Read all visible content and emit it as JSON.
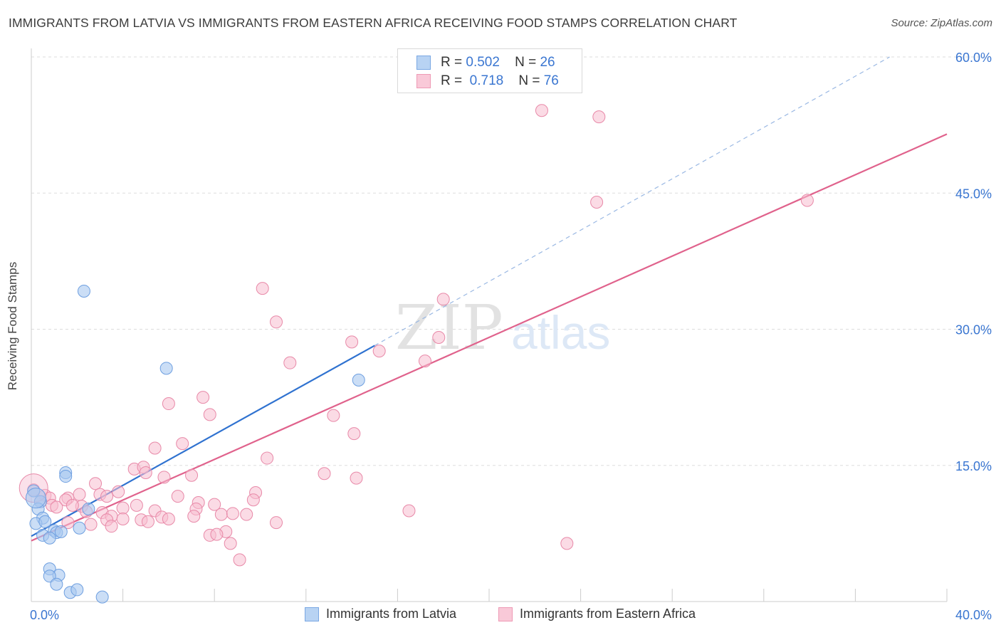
{
  "title": "IMMIGRANTS FROM LATVIA VS IMMIGRANTS FROM EASTERN AFRICA RECEIVING FOOD STAMPS CORRELATION CHART",
  "source": "Source: ZipAtlas.com",
  "watermark": {
    "zip": "ZIP",
    "atlas": "atlas"
  },
  "legend": {
    "latvia": {
      "r_label": "R =",
      "r_value": "0.502",
      "n_label": "N =",
      "n_value": "26"
    },
    "eafrica": {
      "r_label": "R =",
      "r_value": "0.718",
      "n_label": "N =",
      "n_value": "76"
    }
  },
  "bottom_legend": {
    "latvia": "Immigrants from Latvia",
    "eafrica": "Immigrants from Eastern Africa"
  },
  "chart_data": {
    "type": "scatter",
    "title": "IMMIGRANTS FROM LATVIA VS IMMIGRANTS FROM EASTERN AFRICA RECEIVING FOOD STAMPS CORRELATION CHART",
    "xlabel": "",
    "ylabel": "Receiving Food Stamps",
    "xlim": [
      0,
      40
    ],
    "ylim": [
      0,
      60
    ],
    "x_tick_labels": [
      {
        "value": 0,
        "label": "0.0%"
      },
      {
        "value": 40,
        "label": "40.0%"
      }
    ],
    "y_tick_labels": [
      {
        "value": 15,
        "label": "15.0%"
      },
      {
        "value": 30,
        "label": "30.0%"
      },
      {
        "value": 45,
        "label": "45.0%"
      },
      {
        "value": 60,
        "label": "60.0%"
      }
    ],
    "grid": true,
    "colors": {
      "latvia_fill": "#a9c8f0",
      "latvia_stroke": "#6e9fe0",
      "latvia_line": "#2f72d0",
      "eafrica_fill": "#f7bdd0",
      "eafrica_stroke": "#e889a8",
      "eafrica_line": "#e0628c",
      "axis_text": "#3a76d1",
      "grid": "#dddddd"
    },
    "series": [
      {
        "name": "Immigrants from Latvia",
        "r": 0.502,
        "n": 26,
        "trend": {
          "x0": 0.0,
          "y0": 7.2,
          "x1": 15.0,
          "y1": 28.2,
          "dash_to_x": 37.5,
          "dash_to_y": 60.0
        },
        "points": [
          [
            2.3,
            34.2
          ],
          [
            5.9,
            25.7
          ],
          [
            14.3,
            24.4
          ],
          [
            1.5,
            14.2
          ],
          [
            1.5,
            13.8
          ],
          [
            0.1,
            12.2
          ],
          [
            0.4,
            11.0
          ],
          [
            0.3,
            10.2
          ],
          [
            0.5,
            9.2
          ],
          [
            0.2,
            8.6
          ],
          [
            0.6,
            8.8
          ],
          [
            1.0,
            7.8
          ],
          [
            1.1,
            7.6
          ],
          [
            1.3,
            7.7
          ],
          [
            0.5,
            7.3
          ],
          [
            0.8,
            7.0
          ],
          [
            2.1,
            8.1
          ],
          [
            2.5,
            10.2
          ],
          [
            0.8,
            3.6
          ],
          [
            1.2,
            2.9
          ],
          [
            0.8,
            2.8
          ],
          [
            1.1,
            1.9
          ],
          [
            1.7,
            1.0
          ],
          [
            2.0,
            1.3
          ],
          [
            3.1,
            0.5
          ],
          [
            0.2,
            11.4
          ]
        ]
      },
      {
        "name": "Immigrants from Eastern Africa",
        "r": 0.718,
        "n": 76,
        "trend": {
          "x0": 0.0,
          "y0": 6.7,
          "x1": 40.0,
          "y1": 51.5
        },
        "points": [
          [
            22.3,
            54.1
          ],
          [
            24.8,
            53.4
          ],
          [
            24.7,
            44.0
          ],
          [
            33.9,
            44.2
          ],
          [
            10.1,
            34.5
          ],
          [
            18.0,
            33.3
          ],
          [
            10.7,
            30.8
          ],
          [
            14.0,
            28.6
          ],
          [
            17.8,
            29.1
          ],
          [
            15.2,
            27.6
          ],
          [
            11.3,
            26.3
          ],
          [
            17.2,
            26.5
          ],
          [
            7.5,
            22.5
          ],
          [
            6.0,
            21.8
          ],
          [
            7.8,
            20.6
          ],
          [
            13.2,
            20.5
          ],
          [
            14.1,
            18.5
          ],
          [
            6.6,
            17.4
          ],
          [
            5.4,
            16.9
          ],
          [
            10.3,
            15.8
          ],
          [
            4.5,
            14.6
          ],
          [
            4.9,
            14.8
          ],
          [
            5.0,
            14.2
          ],
          [
            12.8,
            14.1
          ],
          [
            14.2,
            13.6
          ],
          [
            5.8,
            13.7
          ],
          [
            7.0,
            13.9
          ],
          [
            2.8,
            13.0
          ],
          [
            3.8,
            12.1
          ],
          [
            9.8,
            12.0
          ],
          [
            3.0,
            11.8
          ],
          [
            0.1,
            12.3
          ],
          [
            2.1,
            11.8
          ],
          [
            1.6,
            11.4
          ],
          [
            0.6,
            11.7
          ],
          [
            0.8,
            11.4
          ],
          [
            3.3,
            11.6
          ],
          [
            0.4,
            11.0
          ],
          [
            1.5,
            11.2
          ],
          [
            2.2,
            10.5
          ],
          [
            6.4,
            11.6
          ],
          [
            7.3,
            10.9
          ],
          [
            5.4,
            10.0
          ],
          [
            8.0,
            10.7
          ],
          [
            9.7,
            11.2
          ],
          [
            0.9,
            10.6
          ],
          [
            1.1,
            10.4
          ],
          [
            1.8,
            10.6
          ],
          [
            3.1,
            9.8
          ],
          [
            4.0,
            10.3
          ],
          [
            4.6,
            10.6
          ],
          [
            2.4,
            9.9
          ],
          [
            3.5,
            9.4
          ],
          [
            3.3,
            9.0
          ],
          [
            7.2,
            10.2
          ],
          [
            8.3,
            9.6
          ],
          [
            8.8,
            9.7
          ],
          [
            9.4,
            9.6
          ],
          [
            5.7,
            9.3
          ],
          [
            6.0,
            9.1
          ],
          [
            7.1,
            9.4
          ],
          [
            4.0,
            9.1
          ],
          [
            4.8,
            9.0
          ],
          [
            1.6,
            8.7
          ],
          [
            2.6,
            8.5
          ],
          [
            10.7,
            8.7
          ],
          [
            5.1,
            8.8
          ],
          [
            3.5,
            8.3
          ],
          [
            16.5,
            10.0
          ],
          [
            8.5,
            7.7
          ],
          [
            7.8,
            7.3
          ],
          [
            8.1,
            7.4
          ],
          [
            8.7,
            6.4
          ],
          [
            23.4,
            6.4
          ],
          [
            9.1,
            4.6
          ],
          [
            0.1,
            12.5
          ]
        ]
      }
    ]
  }
}
